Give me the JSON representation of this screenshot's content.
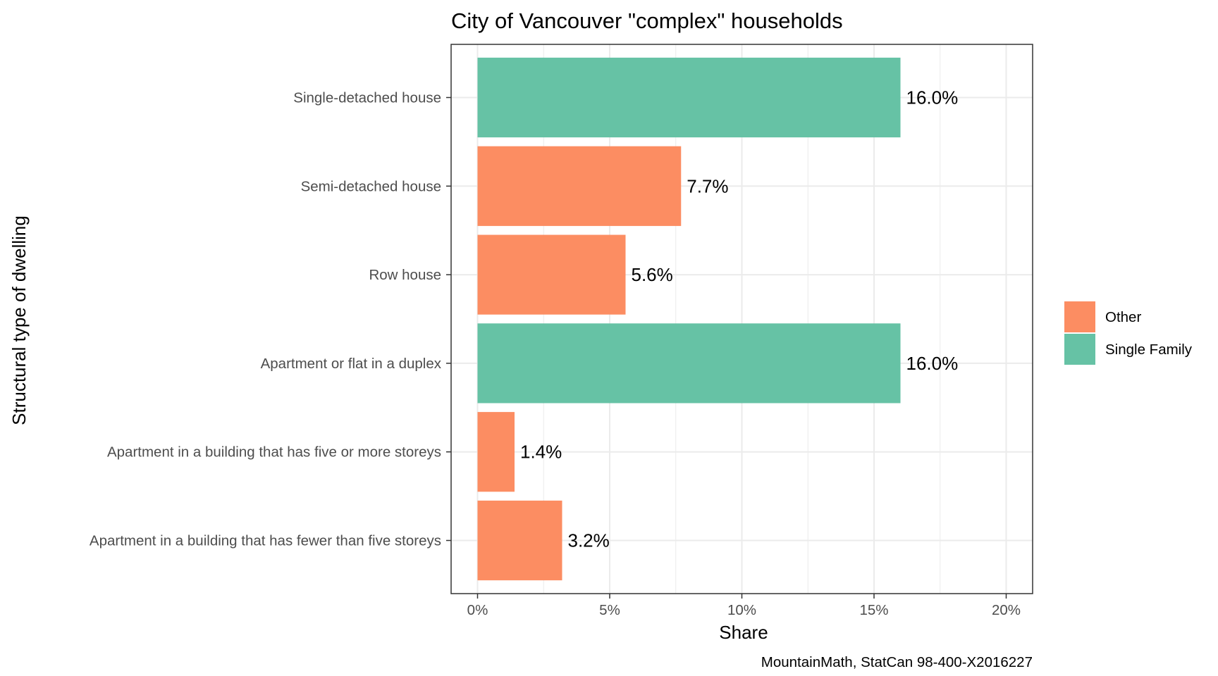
{
  "chart_data": {
    "type": "bar",
    "orientation": "horizontal",
    "title": "City of Vancouver \"complex\" households",
    "xlabel": "Share",
    "ylabel": "Structural type of dwelling",
    "caption": "MountainMath, StatCan 98-400-X2016227",
    "xlim": [
      -0.01,
      0.21
    ],
    "xticks": [
      {
        "value": 0,
        "label": "0%"
      },
      {
        "value": 0.05,
        "label": "5%"
      },
      {
        "value": 0.1,
        "label": "10%"
      },
      {
        "value": 0.15,
        "label": "15%"
      },
      {
        "value": 0.2,
        "label": "20%"
      }
    ],
    "grid": true,
    "legend_position": "right",
    "legend": [
      {
        "name": "Other",
        "color": "#FC8D62"
      },
      {
        "name": "Single Family",
        "color": "#66C2A5"
      }
    ],
    "bars": [
      {
        "category": "Single-detached house",
        "value": 0.16,
        "label": "16.0%",
        "group": "Single Family"
      },
      {
        "category": "Semi-detached house",
        "value": 0.077,
        "label": "7.7%",
        "group": "Other"
      },
      {
        "category": "Row house",
        "value": 0.056,
        "label": "5.6%",
        "group": "Other"
      },
      {
        "category": "Apartment or flat in a duplex",
        "value": 0.16,
        "label": "16.0%",
        "group": "Single Family"
      },
      {
        "category": "Apartment in a building that has five or more storeys",
        "value": 0.014,
        "label": "1.4%",
        "group": "Other"
      },
      {
        "category": "Apartment in a building that has fewer than five storeys",
        "value": 0.032,
        "label": "3.2%",
        "group": "Other"
      }
    ]
  }
}
